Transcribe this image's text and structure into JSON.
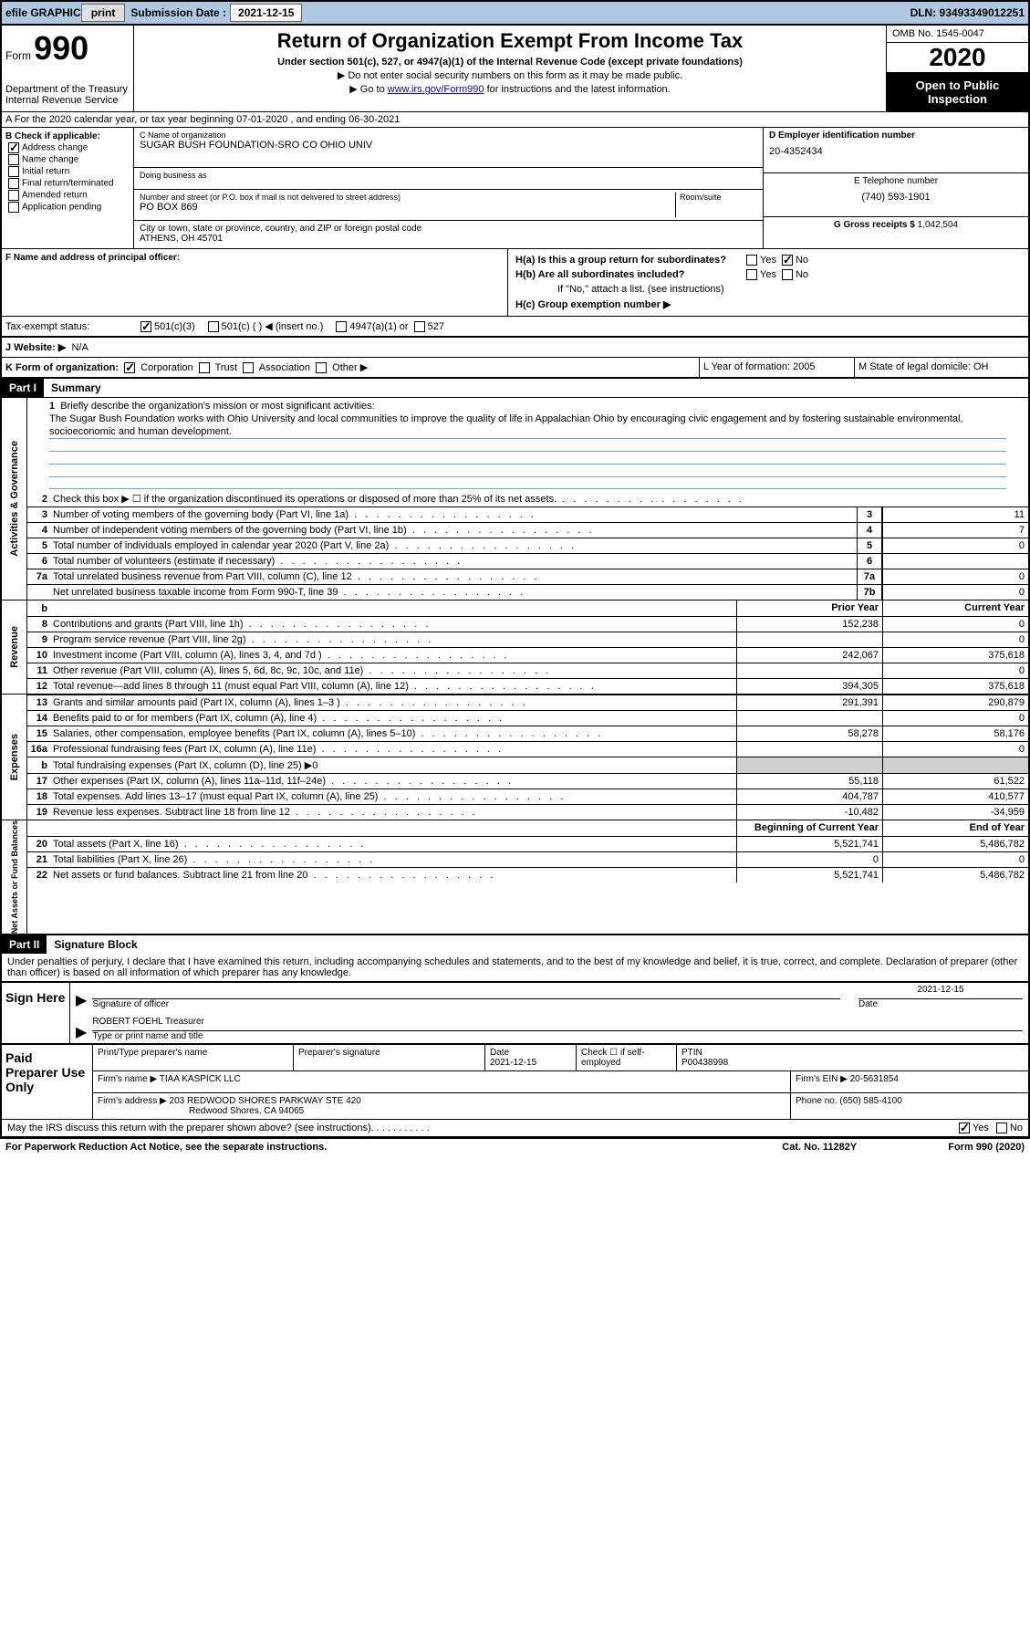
{
  "topbar": {
    "efile": "efile GRAPHIC",
    "print": "print",
    "sub_label": "Submission Date : ",
    "sub_date": "2021-12-15",
    "dln": "DLN: 93493349012251"
  },
  "header": {
    "form_label": "Form",
    "form_num": "990",
    "dept": "Department of the Treasury\nInternal Revenue Service",
    "title": "Return of Organization Exempt From Income Tax",
    "sub1": "Under section 501(c), 527, or 4947(a)(1) of the Internal Revenue Code (except private foundations)",
    "sub2": "▶ Do not enter social security numbers on this form as it may be made public.",
    "sub3a": "▶ Go to ",
    "sub3_link": "www.irs.gov/Form990",
    "sub3b": " for instructions and the latest information.",
    "omb": "OMB No. 1545-0047",
    "year": "2020",
    "public": "Open to Public Inspection"
  },
  "row_a": "A For the 2020 calendar year, or tax year beginning 07-01-2020    , and ending 06-30-2021",
  "col_b": {
    "label": "B Check if applicable:",
    "addr": "Address change",
    "name": "Name change",
    "init": "Initial return",
    "final": "Final return/terminated",
    "amend": "Amended return",
    "app": "Application pending"
  },
  "org": {
    "c_label": "C Name of organization",
    "c_name": "SUGAR BUSH FOUNDATION-SRO CO OHIO UNIV",
    "dba": "Doing business as",
    "addr_label": "Number and street (or P.O. box if mail is not delivered to street address)",
    "room": "Room/suite",
    "addr": "PO BOX 869",
    "city_label": "City or town, state or province, country, and ZIP or foreign postal code",
    "city": "ATHENS, OH  45701"
  },
  "right": {
    "d_label": "D Employer identification number",
    "d_val": "20-4352434",
    "e_label": "E Telephone number",
    "e_val": "(740) 593-1901",
    "g_label": "G Gross receipts $",
    "g_val": "1,042,504"
  },
  "f": {
    "label": "F  Name and address of principal officer:",
    "ha": "H(a)  Is this a group return for subordinates?",
    "hb": "H(b)  Are all subordinates included?",
    "hb2": "If \"No,\" attach a list. (see instructions)",
    "hc": "H(c)  Group exemption number ▶",
    "yes": "Yes",
    "no": "No"
  },
  "status": {
    "label": "Tax-exempt status:",
    "a": "501(c)(3)",
    "b": "501(c) (  ) ◀ (insert no.)",
    "c": "4947(a)(1) or",
    "d": "527"
  },
  "j": {
    "label": "J   Website: ▶",
    "val": "N/A"
  },
  "k": {
    "label": "K Form of organization:",
    "corp": "Corporation",
    "trust": "Trust",
    "assoc": "Association",
    "other": "Other ▶",
    "l": "L Year of formation: 2005",
    "m": "M State of legal domicile: OH"
  },
  "part1": {
    "hdr": "Part I",
    "title": "Summary"
  },
  "mission": {
    "num": "1",
    "label": "Briefly describe the organization's mission or most significant activities:",
    "text": "The Sugar Bush Foundation works with Ohio University and local communities to improve the quality of life in Appalachian Ohio by encouraging civic engagement and by fostering sustainable environmental, socioeconomic and human development."
  },
  "lines_gov": [
    {
      "n": "2",
      "t": "Check this box ▶ ☐  if the organization discontinued its operations or disposed of more than 25% of its net assets."
    },
    {
      "n": "3",
      "t": "Number of voting members of the governing body (Part VI, line 1a)",
      "box": "3",
      "v": "11"
    },
    {
      "n": "4",
      "t": "Number of independent voting members of the governing body (Part VI, line 1b)",
      "box": "4",
      "v": "7"
    },
    {
      "n": "5",
      "t": "Total number of individuals employed in calendar year 2020 (Part V, line 2a)",
      "box": "5",
      "v": "0"
    },
    {
      "n": "6",
      "t": "Total number of volunteers (estimate if necessary)",
      "box": "6",
      "v": ""
    },
    {
      "n": "7a",
      "t": "Total unrelated business revenue from Part VIII, column (C), line 12",
      "box": "7a",
      "v": "0"
    },
    {
      "n": "",
      "t": "Net unrelated business taxable income from Form 990-T, line 39",
      "box": "7b",
      "v": "0"
    }
  ],
  "rev_hdr": {
    "b": "b",
    "py": "Prior Year",
    "cy": "Current Year"
  },
  "lines_rev": [
    {
      "n": "8",
      "t": "Contributions and grants (Part VIII, line 1h)",
      "py": "152,238",
      "cy": "0"
    },
    {
      "n": "9",
      "t": "Program service revenue (Part VIII, line 2g)",
      "py": "",
      "cy": "0"
    },
    {
      "n": "10",
      "t": "Investment income (Part VIII, column (A), lines 3, 4, and 7d )",
      "py": "242,067",
      "cy": "375,618"
    },
    {
      "n": "11",
      "t": "Other revenue (Part VIII, column (A), lines 5, 6d, 8c, 9c, 10c, and 11e)",
      "py": "",
      "cy": "0"
    },
    {
      "n": "12",
      "t": "Total revenue—add lines 8 through 11 (must equal Part VIII, column (A), line 12)",
      "py": "394,305",
      "cy": "375,618"
    }
  ],
  "lines_exp": [
    {
      "n": "13",
      "t": "Grants and similar amounts paid (Part IX, column (A), lines 1–3 )",
      "py": "291,391",
      "cy": "290,879"
    },
    {
      "n": "14",
      "t": "Benefits paid to or for members (Part IX, column (A), line 4)",
      "py": "",
      "cy": "0"
    },
    {
      "n": "15",
      "t": "Salaries, other compensation, employee benefits (Part IX, column (A), lines 5–10)",
      "py": "58,278",
      "cy": "58,176"
    },
    {
      "n": "16a",
      "t": "Professional fundraising fees (Part IX, column (A), line 11e)",
      "py": "",
      "cy": "0"
    },
    {
      "n": "b",
      "t": "Total fundraising expenses (Part IX, column (D), line 25) ▶0",
      "shaded": true
    },
    {
      "n": "17",
      "t": "Other expenses (Part IX, column (A), lines 11a–11d, 11f–24e)",
      "py": "55,118",
      "cy": "61,522"
    },
    {
      "n": "18",
      "t": "Total expenses. Add lines 13–17 (must equal Part IX, column (A), line 25)",
      "py": "404,787",
      "cy": "410,577"
    },
    {
      "n": "19",
      "t": "Revenue less expenses. Subtract line 18 from line 12",
      "py": "-10,482",
      "cy": "-34,959"
    }
  ],
  "net_hdr": {
    "py": "Beginning of Current Year",
    "cy": "End of Year"
  },
  "lines_net": [
    {
      "n": "20",
      "t": "Total assets (Part X, line 16)",
      "py": "5,521,741",
      "cy": "5,486,782"
    },
    {
      "n": "21",
      "t": "Total liabilities (Part X, line 26)",
      "py": "0",
      "cy": "0"
    },
    {
      "n": "22",
      "t": "Net assets or fund balances. Subtract line 21 from line 20",
      "py": "5,521,741",
      "cy": "5,486,782"
    }
  ],
  "vlabels": {
    "gov": "Activities & Governance",
    "rev": "Revenue",
    "exp": "Expenses",
    "net": "Net Assets or Fund Balances"
  },
  "part2": {
    "hdr": "Part II",
    "title": "Signature Block"
  },
  "penalties": "Under penalties of perjury, I declare that I have examined this return, including accompanying schedules and statements, and to the best of my knowledge and belief, it is true, correct, and complete. Declaration of preparer (other than officer) is based on all information of which preparer has any knowledge.",
  "sign": {
    "here": "Sign Here",
    "sig_of": "Signature of officer",
    "date": "Date",
    "date_val": "2021-12-15",
    "name": "ROBERT FOEHL  Treasurer",
    "type": "Type or print name and title"
  },
  "paid": {
    "title": "Paid Preparer Use Only",
    "h1": "Print/Type preparer's name",
    "h2": "Preparer's signature",
    "h3": "Date",
    "h3v": "2021-12-15",
    "h4": "Check ☐ if self-employed",
    "h5": "PTIN",
    "h5v": "P00438998",
    "firm": "Firm's name    ▶",
    "firm_v": "TIAA KASPICK LLC",
    "ein": "Firm's EIN ▶",
    "ein_v": "20-5631854",
    "addr": "Firm's address ▶",
    "addr_v1": "203 REDWOOD SHORES PARKWAY STE 420",
    "addr_v2": "Redwood Shores, CA  94065",
    "phone": "Phone no.",
    "phone_v": "(650) 585-4100"
  },
  "discuss": "May the IRS discuss this return with the preparer shown above? (see instructions)",
  "footer": {
    "l": "For Paperwork Reduction Act Notice, see the separate instructions.",
    "m": "Cat. No. 11282Y",
    "r": "Form 990 (2020)"
  }
}
